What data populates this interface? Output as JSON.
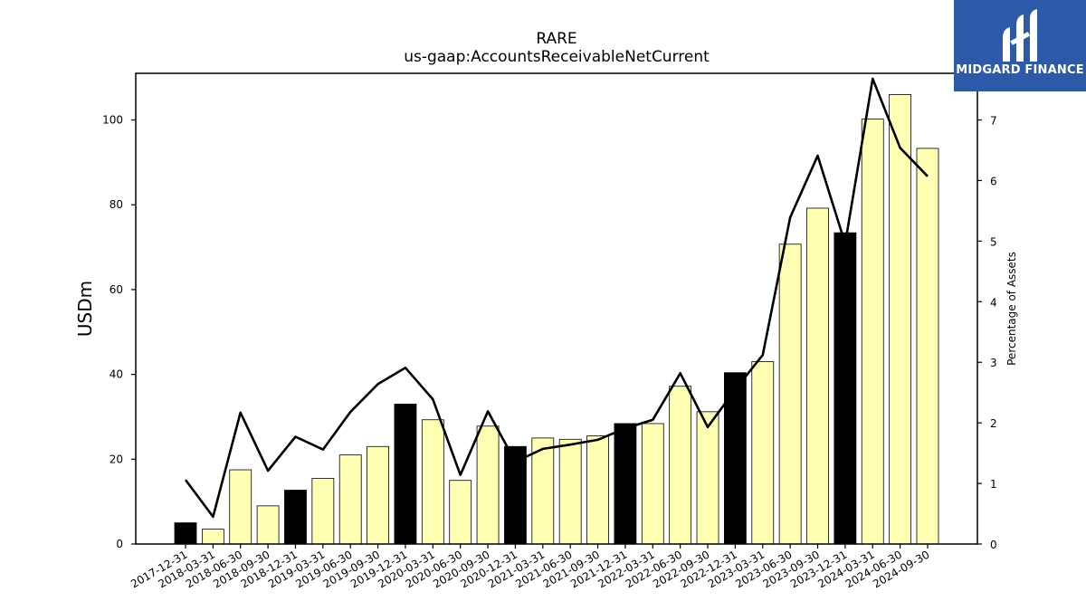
{
  "brand": {
    "name": "MIDGARD FINANCE",
    "color": "#2d5aa8"
  },
  "chart_data": {
    "type": "bar",
    "title": "RARE",
    "subtitle": "us-gaap:AccountsReceivableNetCurrent",
    "ylabel": "USDm",
    "y2label": "Percentage of Assets",
    "ylim": [
      0,
      111
    ],
    "y2lim": [
      0,
      7.77
    ],
    "yticks": [
      0,
      20,
      40,
      60,
      80,
      100
    ],
    "y2ticks": [
      0,
      1,
      2,
      3,
      4,
      5,
      6,
      7
    ],
    "categories": [
      "2017-12-31",
      "2018-03-31",
      "2018-06-30",
      "2018-09-30",
      "2018-12-31",
      "2019-03-31",
      "2019-06-30",
      "2019-09-30",
      "2019-12-31",
      "2020-03-31",
      "2020-06-30",
      "2020-09-30",
      "2020-12-31",
      "2021-03-31",
      "2021-06-30",
      "2021-09-30",
      "2021-12-31",
      "2022-03-31",
      "2022-06-30",
      "2022-09-30",
      "2022-12-31",
      "2023-03-31",
      "2023-06-30",
      "2023-09-30",
      "2023-12-31",
      "2024-03-31",
      "2024-06-30",
      "2024-09-30"
    ],
    "series": [
      {
        "kind": "bar",
        "values": [
          5.0,
          3.5,
          17.5,
          9.0,
          12.7,
          15.5,
          21.0,
          23.0,
          33.0,
          29.3,
          15.0,
          27.8,
          23.0,
          25.0,
          24.7,
          25.5,
          28.4,
          28.4,
          37.2,
          31.2,
          40.4,
          43.0,
          70.7,
          79.2,
          73.4,
          100.2,
          106.0,
          93.3
        ],
        "highlight": [
          true,
          false,
          false,
          false,
          true,
          false,
          false,
          false,
          true,
          false,
          false,
          false,
          true,
          false,
          false,
          false,
          true,
          false,
          false,
          false,
          true,
          false,
          false,
          false,
          true,
          false,
          false,
          false
        ]
      },
      {
        "kind": "line",
        "axis": "right",
        "values": [
          1.06,
          0.45,
          2.17,
          1.21,
          1.77,
          1.56,
          2.18,
          2.64,
          2.91,
          2.39,
          1.14,
          2.19,
          1.36,
          1.57,
          1.64,
          1.72,
          1.91,
          2.05,
          2.82,
          1.93,
          2.55,
          3.12,
          5.39,
          6.41,
          4.96,
          7.68,
          6.54,
          6.07
        ]
      }
    ],
    "colors": {
      "bar_fill": "#ffffb3",
      "bar_highlight": "#000000",
      "bar_edge": "#000000",
      "line": "#000000"
    },
    "grid": false,
    "legend": "none"
  }
}
